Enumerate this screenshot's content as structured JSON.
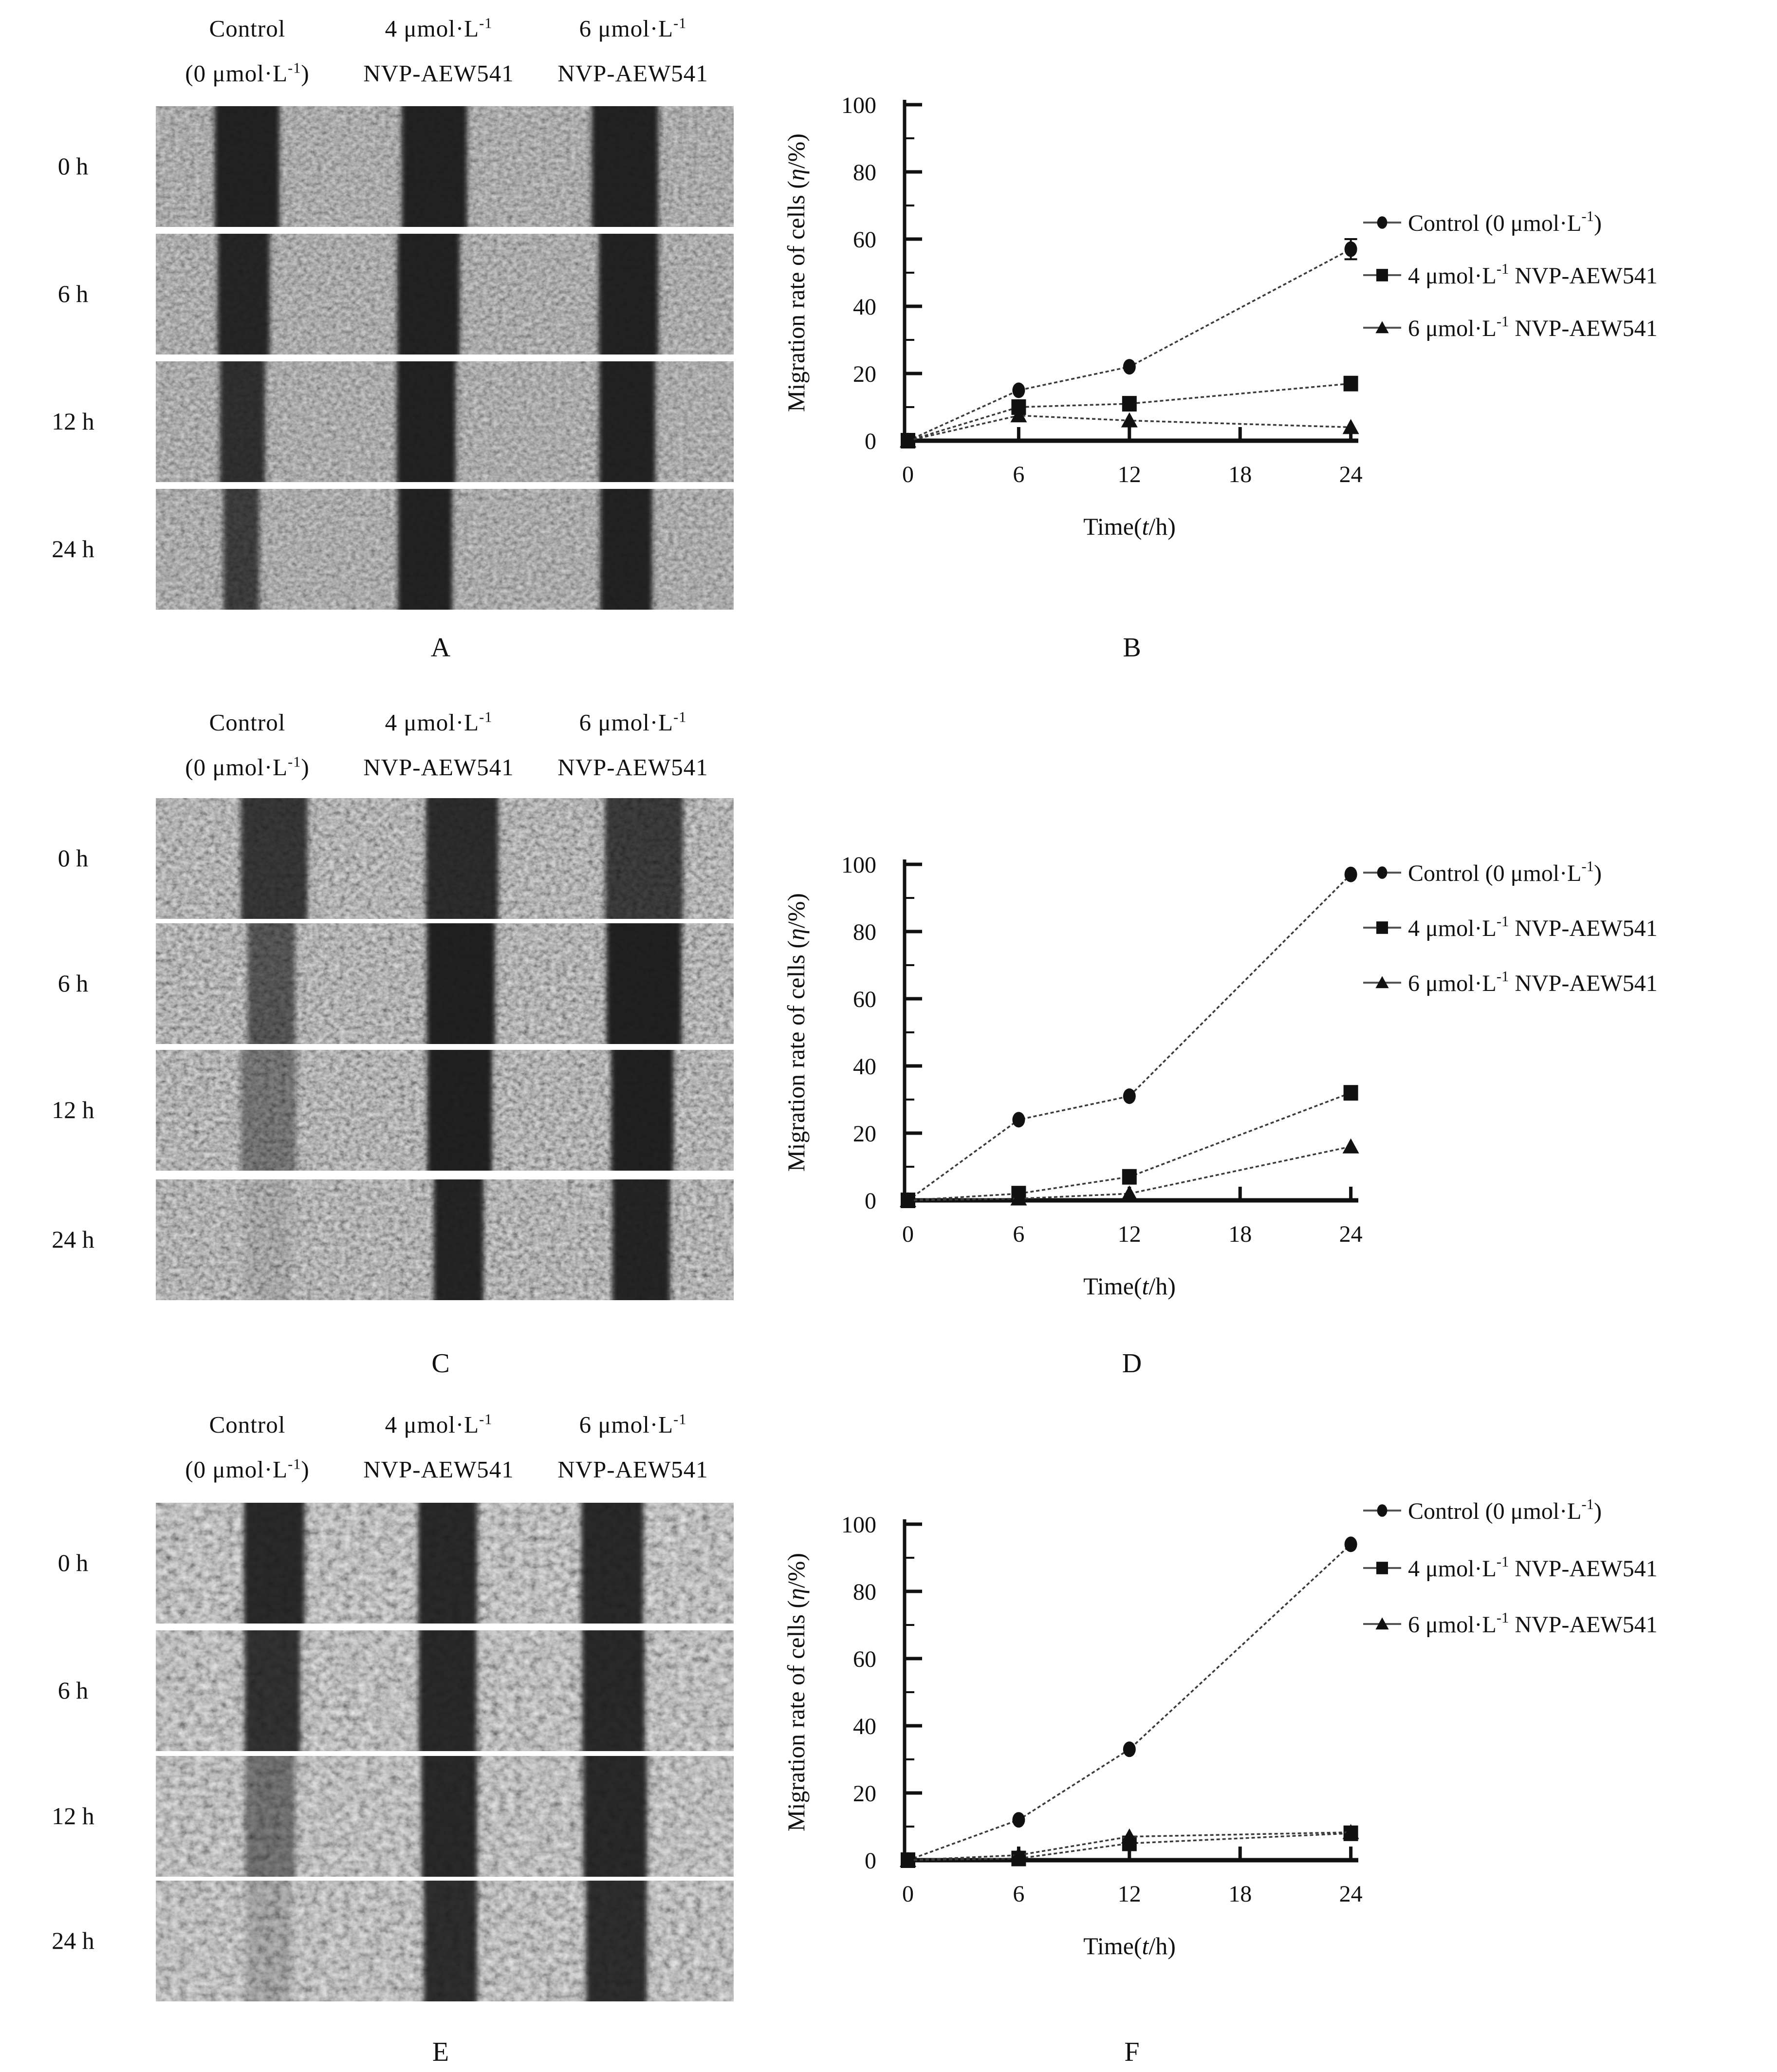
{
  "page": {
    "background": "#ffffff",
    "text_color": "#111111",
    "axis_color": "#111111",
    "series_line_color": "#3a3a3a"
  },
  "micro_columns": [
    {
      "line1": "Control",
      "line2": "(0 μmol·L^{-1})"
    },
    {
      "line1": "4 μmol·L^{-1}",
      "line2": "NVP-AEW541"
    },
    {
      "line1": "6 μmol·L^{-1}",
      "line2": "NVP-AEW541"
    }
  ],
  "micro_panels": [
    {
      "letter": "A",
      "row_labels": [
        "0 h",
        "6 h",
        "12 h",
        "24 h"
      ],
      "texture": {
        "base_frequency": "0.10 0.12",
        "seed": 3,
        "levels": "0.06 0.22 0.40 0.58 0.76"
      },
      "rows": [
        {
          "wounds": [
            [
              0.158,
              0.112,
              0.93
            ],
            [
              0.482,
              0.113,
              0.93
            ],
            [
              0.812,
              0.115,
              0.93
            ]
          ]
        },
        {
          "wounds": [
            [
              0.152,
              0.09,
              0.91
            ],
            [
              0.472,
              0.108,
              0.93
            ],
            [
              0.818,
              0.103,
              0.93
            ]
          ]
        },
        {
          "wounds": [
            [
              0.15,
              0.078,
              0.85
            ],
            [
              0.468,
              0.102,
              0.93
            ],
            [
              0.816,
              0.097,
              0.93
            ]
          ]
        },
        {
          "wounds": [
            [
              0.148,
              0.062,
              0.72
            ],
            [
              0.466,
              0.094,
              0.93
            ],
            [
              0.814,
              0.09,
              0.93
            ]
          ]
        }
      ]
    },
    {
      "letter": "C",
      "row_labels": [
        "0 h",
        "6 h",
        "12 h",
        "24 h"
      ],
      "texture": {
        "base_frequency": "0.09 0.11",
        "seed": 21,
        "levels": "0.03 0.20 0.44 0.66 0.88"
      },
      "rows": [
        {
          "wounds": [
            [
              0.205,
              0.115,
              0.82
            ],
            [
              0.53,
              0.125,
              0.88
            ],
            [
              0.845,
              0.135,
              0.75
            ]
          ]
        },
        {
          "wounds": [
            [
              0.2,
              0.082,
              0.6
            ],
            [
              0.528,
              0.118,
              0.94
            ],
            [
              0.845,
              0.13,
              0.94
            ]
          ]
        },
        {
          "wounds": [
            [
              0.195,
              0.095,
              0.42
            ],
            [
              0.526,
              0.112,
              0.94
            ],
            [
              0.842,
              0.108,
              0.94
            ]
          ]
        },
        {
          "wounds": [
            [
              0.195,
              0.08,
              0.08
            ],
            [
              0.524,
              0.086,
              0.92
            ],
            [
              0.84,
              0.1,
              0.92
            ]
          ]
        }
      ]
    },
    {
      "letter": "E",
      "row_labels": [
        "0 h",
        "6 h",
        "12 h",
        "24 h"
      ],
      "texture": {
        "base_frequency": "0.062 0.075",
        "seed": 40,
        "levels": "0.03 0.24 0.50 0.72 0.94"
      },
      "rows": [
        {
          "wounds": [
            [
              0.205,
              0.105,
              0.9
            ],
            [
              0.505,
              0.102,
              0.9
            ],
            [
              0.79,
              0.107,
              0.9
            ]
          ]
        },
        {
          "wounds": [
            [
              0.202,
              0.096,
              0.86
            ],
            [
              0.505,
              0.1,
              0.9
            ],
            [
              0.792,
              0.108,
              0.9
            ]
          ]
        },
        {
          "wounds": [
            [
              0.198,
              0.086,
              0.48
            ],
            [
              0.508,
              0.096,
              0.9
            ],
            [
              0.795,
              0.11,
              0.9
            ]
          ]
        },
        {
          "wounds": [
            [
              0.196,
              0.076,
              0.16
            ],
            [
              0.51,
              0.092,
              0.88
            ],
            [
              0.797,
              0.105,
              0.88
            ]
          ]
        }
      ]
    }
  ],
  "chart_text": {
    "ylabel_parts": [
      {
        "text": "Migration rate of cells ("
      },
      {
        "text": "η",
        "italic": true
      },
      {
        "text": "/%)"
      }
    ],
    "xlabel_parts": [
      {
        "text": "Time("
      },
      {
        "text": "t",
        "italic": true
      },
      {
        "text": "/h)"
      }
    ]
  },
  "chart_data": [
    {
      "id": "B",
      "letter": "B",
      "type": "line",
      "x": [
        0,
        6,
        12,
        24
      ],
      "xticks": [
        0,
        6,
        12,
        18,
        24
      ],
      "yticks": [
        0,
        20,
        40,
        60,
        80,
        100
      ],
      "ylim": [
        0,
        100
      ],
      "xlabel": "Time(t/h)",
      "ylabel": "Migration rate of cells (η/%)",
      "legend_position": "middle-right",
      "grid": false,
      "series": [
        {
          "name": "Control (0 μmol·L^{-1})",
          "marker": "circle",
          "y": [
            0,
            15,
            22,
            57
          ],
          "yerr": [
            0,
            0,
            0,
            3
          ]
        },
        {
          "name": "4 μmol·L^{-1} NVP-AEW541",
          "marker": "square",
          "y": [
            0,
            10,
            11,
            17
          ],
          "yerr": [
            0,
            0,
            0,
            0
          ]
        },
        {
          "name": "6 μmol·L^{-1} NVP-AEW541",
          "marker": "triangle",
          "y": [
            0,
            7.5,
            6,
            4
          ],
          "yerr": [
            0,
            0,
            0,
            0
          ]
        }
      ]
    },
    {
      "id": "D",
      "letter": "D",
      "type": "line",
      "x": [
        0,
        6,
        12,
        24
      ],
      "xticks": [
        0,
        6,
        12,
        18,
        24
      ],
      "yticks": [
        0,
        20,
        40,
        60,
        80,
        100
      ],
      "ylim": [
        0,
        100
      ],
      "xlabel": "Time(t/h)",
      "ylabel": "Migration rate of cells (η/%)",
      "legend_position": "upper-right",
      "grid": false,
      "series": [
        {
          "name": "Control (0 μmol·L^{-1})",
          "marker": "circle",
          "y": [
            0,
            24,
            31,
            97
          ],
          "yerr": [
            0,
            0,
            0,
            0
          ]
        },
        {
          "name": "4 μmol·L^{-1} NVP-AEW541",
          "marker": "square",
          "y": [
            0,
            2,
            7,
            32
          ],
          "yerr": [
            0,
            0,
            0,
            0
          ]
        },
        {
          "name": "6 μmol·L^{-1} NVP-AEW541",
          "marker": "triangle",
          "y": [
            0,
            0.5,
            2,
            16
          ],
          "yerr": [
            0,
            0,
            0,
            0
          ]
        }
      ]
    },
    {
      "id": "F",
      "letter": "F",
      "type": "line",
      "x": [
        0,
        6,
        12,
        24
      ],
      "xticks": [
        0,
        6,
        12,
        18,
        24
      ],
      "yticks": [
        0,
        20,
        40,
        60,
        80,
        100
      ],
      "ylim": [
        0,
        100
      ],
      "xlabel": "Time(t/h)",
      "ylabel": "Migration rate of cells (η/%)",
      "legend_position": "top-right",
      "grid": false,
      "series": [
        {
          "name": "Control (0 μmol·L^{-1})",
          "marker": "circle",
          "y": [
            0,
            12,
            33,
            94
          ],
          "yerr": [
            0,
            0,
            0,
            0
          ]
        },
        {
          "name": "4 μmol·L^{-1} NVP-AEW541",
          "marker": "square",
          "y": [
            0,
            0.5,
            5,
            8
          ],
          "yerr": [
            0,
            0,
            0,
            0
          ]
        },
        {
          "name": "6 μmol·L^{-1} NVP-AEW541",
          "marker": "triangle",
          "y": [
            0,
            1.5,
            7,
            8.3
          ],
          "yerr": [
            0,
            0,
            0,
            0
          ]
        }
      ]
    }
  ]
}
